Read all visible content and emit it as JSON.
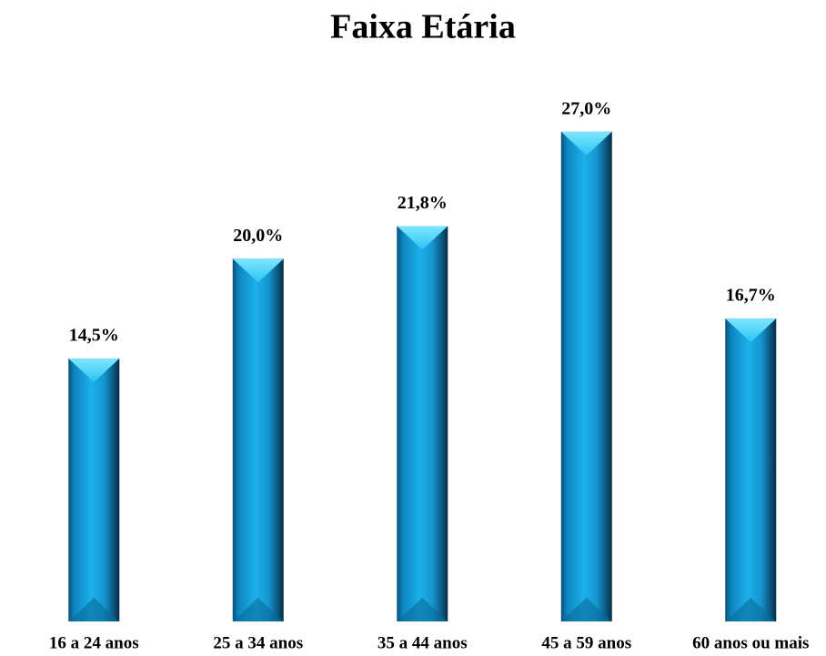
{
  "chart_data": {
    "type": "bar",
    "title": "Faixa Etária",
    "categories": [
      "16 a 24 anos",
      "25 a 34 anos",
      "35 a 44 anos",
      "45 a 59 anos",
      "60 anos ou mais"
    ],
    "values": [
      14.5,
      20.0,
      21.8,
      27.0,
      16.7
    ],
    "value_labels": [
      "14,5%",
      "20,0%",
      "21,8%",
      "27,0%",
      "16,7%"
    ],
    "color": "#1aa3dc",
    "ylim": [
      0,
      30
    ]
  }
}
